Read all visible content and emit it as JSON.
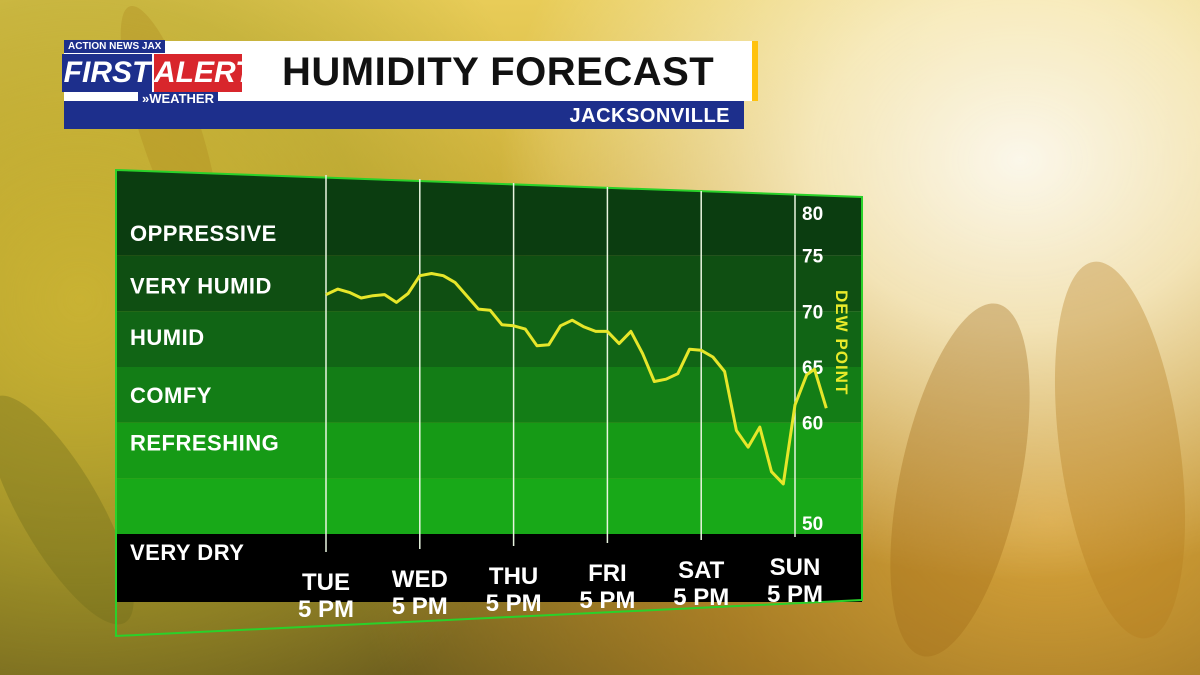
{
  "branding": {
    "station": "ACTION NEWS JAX",
    "first": "FIRST",
    "alert": "ALERT",
    "weather": "»WEATHER"
  },
  "header": {
    "title": "HUMIDITY FORECAST",
    "location": "JACKSONVILLE"
  },
  "colors": {
    "line": "#e6e62a",
    "title_bar": "#1d2f8c",
    "alert_red": "#d8262c",
    "accent": "#ffc20e",
    "band_dark": "#0b3d10",
    "band_light": "#169a16"
  },
  "chart_data": {
    "type": "line",
    "title": "HUMIDITY FORECAST",
    "ylabel": "DEW POINT",
    "y_ticks": [
      50,
      60,
      65,
      70,
      75,
      80
    ],
    "ylim": [
      50,
      80
    ],
    "categories": [
      "TUE 5 PM",
      "WED 5 PM",
      "THU 5 PM",
      "FRI 5 PM",
      "SAT 5 PM",
      "SUN 5 PM"
    ],
    "bands": [
      {
        "label": "OPPRESSIVE",
        "from": 75,
        "to": 80
      },
      {
        "label": "VERY HUMID",
        "from": 70,
        "to": 75
      },
      {
        "label": "HUMID",
        "from": 65,
        "to": 70
      },
      {
        "label": "COMFY",
        "from": 60,
        "to": 65
      },
      {
        "label": "REFRESHING",
        "from": 55,
        "to": 60
      },
      {
        "label": "VERY DRY",
        "from": 50,
        "to": 55
      }
    ],
    "x_unit": "hours after Tue 5 PM",
    "series": [
      {
        "values": [
          [
            0,
            71.5
          ],
          [
            3,
            72
          ],
          [
            6,
            71.7
          ],
          [
            9,
            71.2
          ],
          [
            12,
            71.4
          ],
          [
            15,
            71.5
          ],
          [
            18,
            70.8
          ],
          [
            21,
            71.6
          ],
          [
            24,
            73.2
          ],
          [
            27,
            73.4
          ],
          [
            30,
            73.2
          ],
          [
            33,
            72.6
          ],
          [
            36,
            71.4
          ],
          [
            39,
            70.2
          ],
          [
            42,
            70.1
          ],
          [
            45,
            68.8
          ],
          [
            48,
            68.7
          ],
          [
            51,
            68.4
          ],
          [
            54,
            66.9
          ],
          [
            57,
            67.0
          ],
          [
            60,
            68.7
          ],
          [
            63,
            69.2
          ],
          [
            66,
            68.6
          ],
          [
            69,
            68.2
          ],
          [
            72,
            68.2
          ],
          [
            75,
            67.1
          ],
          [
            78,
            68.2
          ],
          [
            81,
            66.2
          ],
          [
            84,
            63.7
          ],
          [
            87,
            63.9
          ],
          [
            90,
            64.4
          ],
          [
            93,
            66.6
          ],
          [
            96,
            66.5
          ],
          [
            99,
            65.9
          ],
          [
            102,
            64.6
          ],
          [
            105,
            59.3
          ],
          [
            108,
            57.8
          ],
          [
            111,
            59.6
          ],
          [
            114,
            55.6
          ],
          [
            117,
            54.5
          ],
          [
            120,
            61.6
          ],
          [
            123,
            64.3
          ],
          [
            125,
            64.8
          ],
          [
            128,
            61.3
          ]
        ]
      }
    ],
    "grid": true,
    "legend": "none"
  }
}
